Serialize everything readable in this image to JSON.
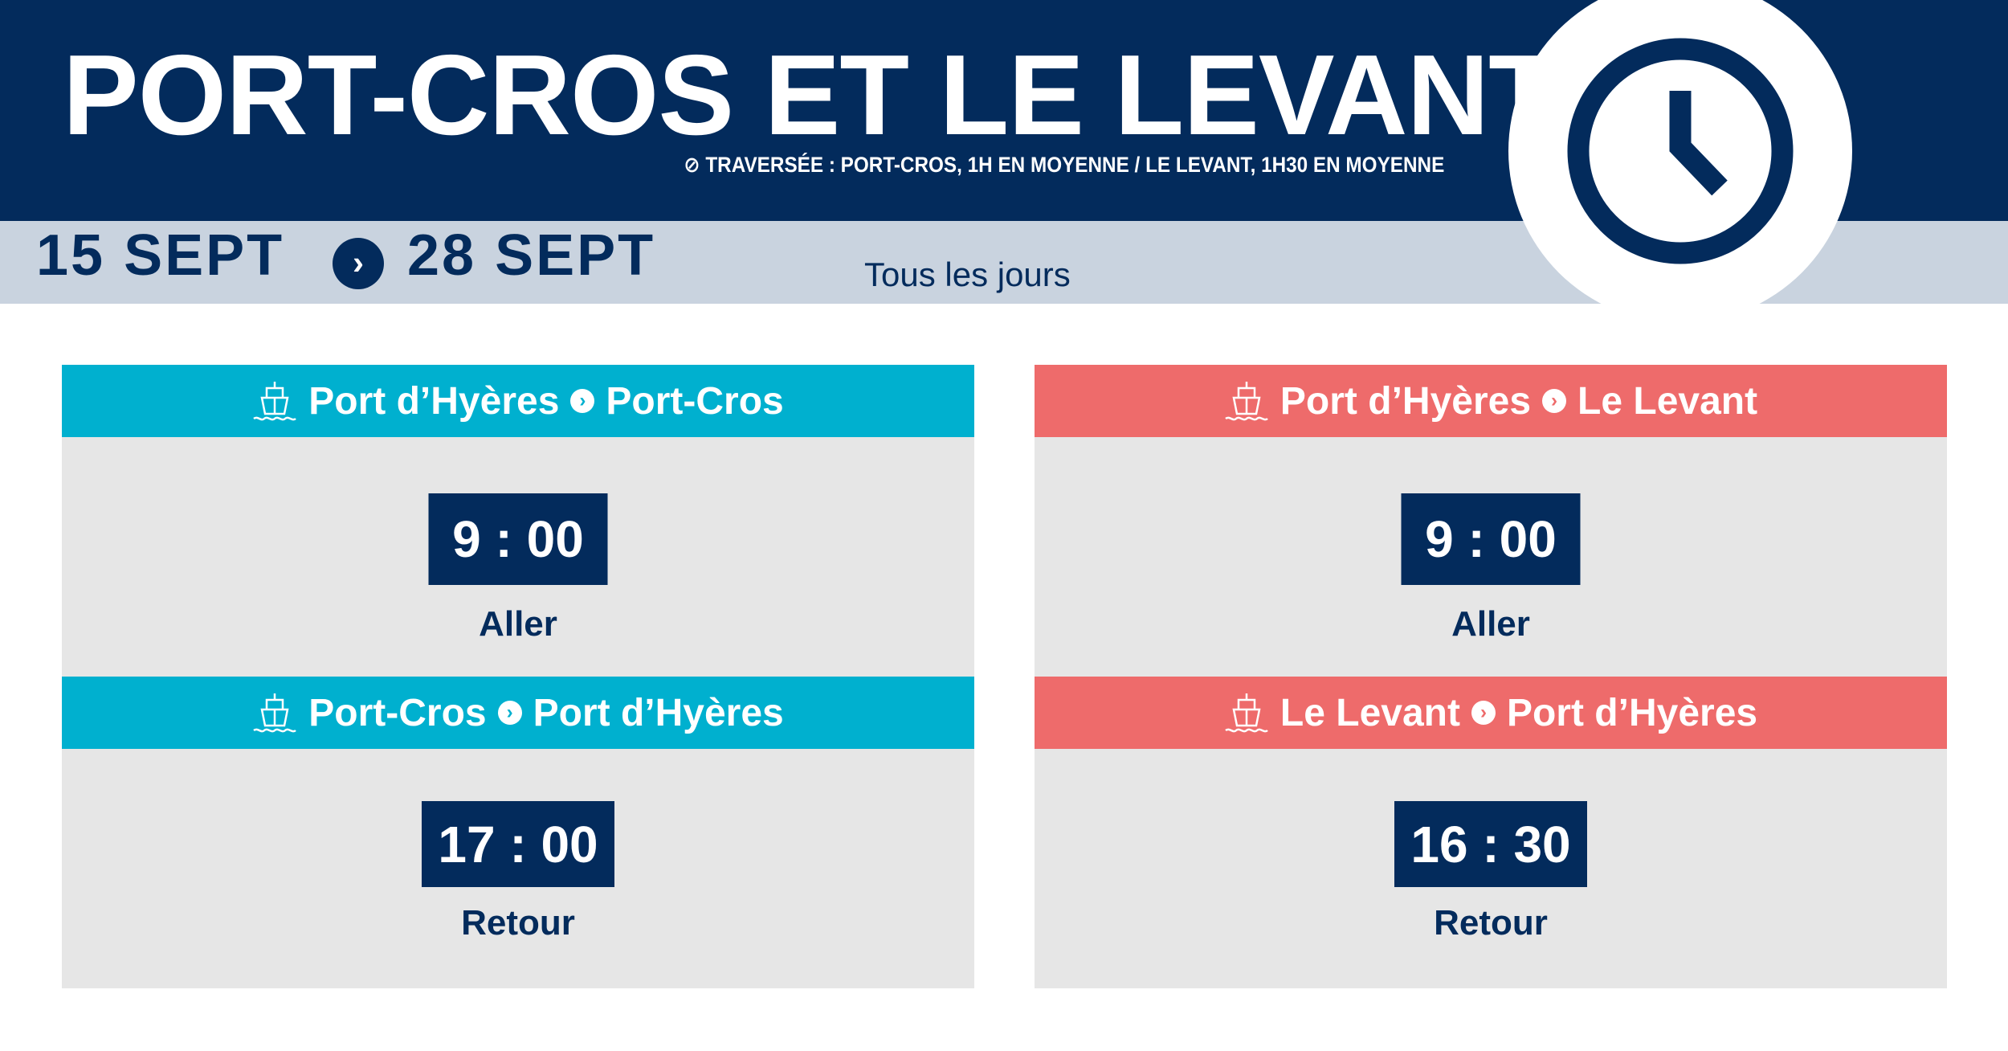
{
  "header": {
    "title": "PORT-CROS ET LE LEVANT",
    "subtitle": "⊘ TRAVERSÉE : PORT-CROS, 1H EN MOYENNE / LE LEVANT, 1H30 EN MOYENNE",
    "icon": "clock-icon"
  },
  "period": {
    "start": "15 SEPT",
    "separator": "›",
    "end": "28 SEPT",
    "days": "Tous les jours"
  },
  "colors": {
    "navy": "#032b5c",
    "cyan": "#00b0cf",
    "coral": "#ee6b6b",
    "panel": "#e6e6e6",
    "band": "#c9d3df"
  },
  "routes": [
    {
      "from": "Port d’Hyères",
      "to": "Port-Cros",
      "time": "9 : 00",
      "label": "Aller",
      "icon": "ship-icon"
    },
    {
      "from": "Port-Cros",
      "to": "Port d’Hyères",
      "time": "17 : 00",
      "label": "Retour",
      "icon": "ship-icon"
    },
    {
      "from": "Port d’Hyères",
      "to": "Le Levant",
      "time": "9 : 00",
      "label": "Aller",
      "icon": "ship-icon"
    },
    {
      "from": "Le Levant",
      "to": "Port d’Hyères",
      "time": "16 : 30",
      "label": "Retour",
      "icon": "ship-icon"
    }
  ]
}
